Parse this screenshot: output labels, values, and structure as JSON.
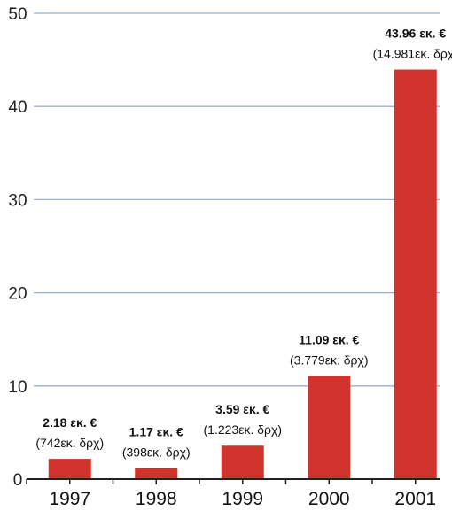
{
  "chart_data": {
    "type": "bar",
    "categories": [
      "1997",
      "1998",
      "1999",
      "2000",
      "2001"
    ],
    "values": [
      2.18,
      1.17,
      3.59,
      11.09,
      43.96
    ],
    "data_labels": [
      "2.18 εκ. €",
      "1.17 εκ. €",
      "3.59 εκ. €",
      "11.09 εκ. €",
      "43.96 εκ. €"
    ],
    "secondary_labels": [
      "(742εκ. δρχ)",
      "(398εκ. δρχ)",
      "(1.223εκ. δρχ)",
      "(3.779εκ. δρχ)",
      "(14.981εκ. δρχ)"
    ],
    "yticks": [
      0,
      10,
      20,
      30,
      40,
      50
    ],
    "ylim": [
      0,
      50
    ],
    "grid": true,
    "bar_color": "#d0342c",
    "grid_color": "#9bb0c4",
    "axis_color": "#222222"
  }
}
